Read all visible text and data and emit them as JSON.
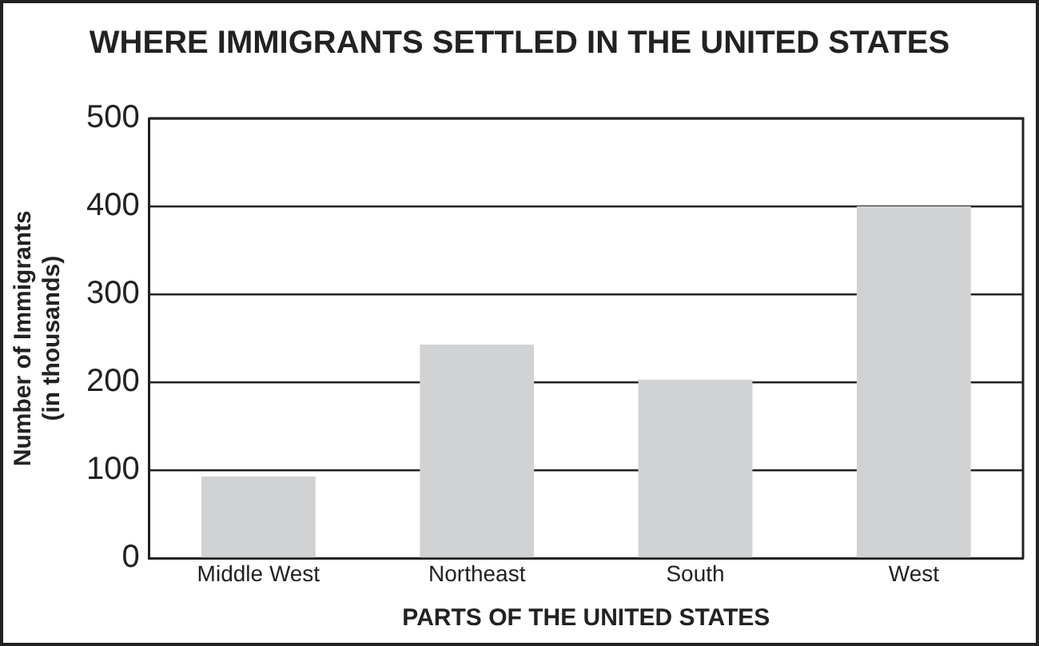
{
  "chart_data": {
    "type": "bar",
    "title": "WHERE IMMIGRANTS SETTLED IN THE UNITED STATES",
    "xlabel": "PARTS OF THE UNITED STATES",
    "ylabel": "Number of Immigrants\n(in thousands)",
    "categories": [
      "Middle West",
      "Northeast",
      "South",
      "West"
    ],
    "values": [
      93,
      243,
      203,
      400
    ],
    "color": "#d1d2d4",
    "ylim": [
      0,
      500
    ],
    "yticks": [
      0,
      100,
      200,
      300,
      400,
      500
    ],
    "grid": "y",
    "legend": false
  }
}
